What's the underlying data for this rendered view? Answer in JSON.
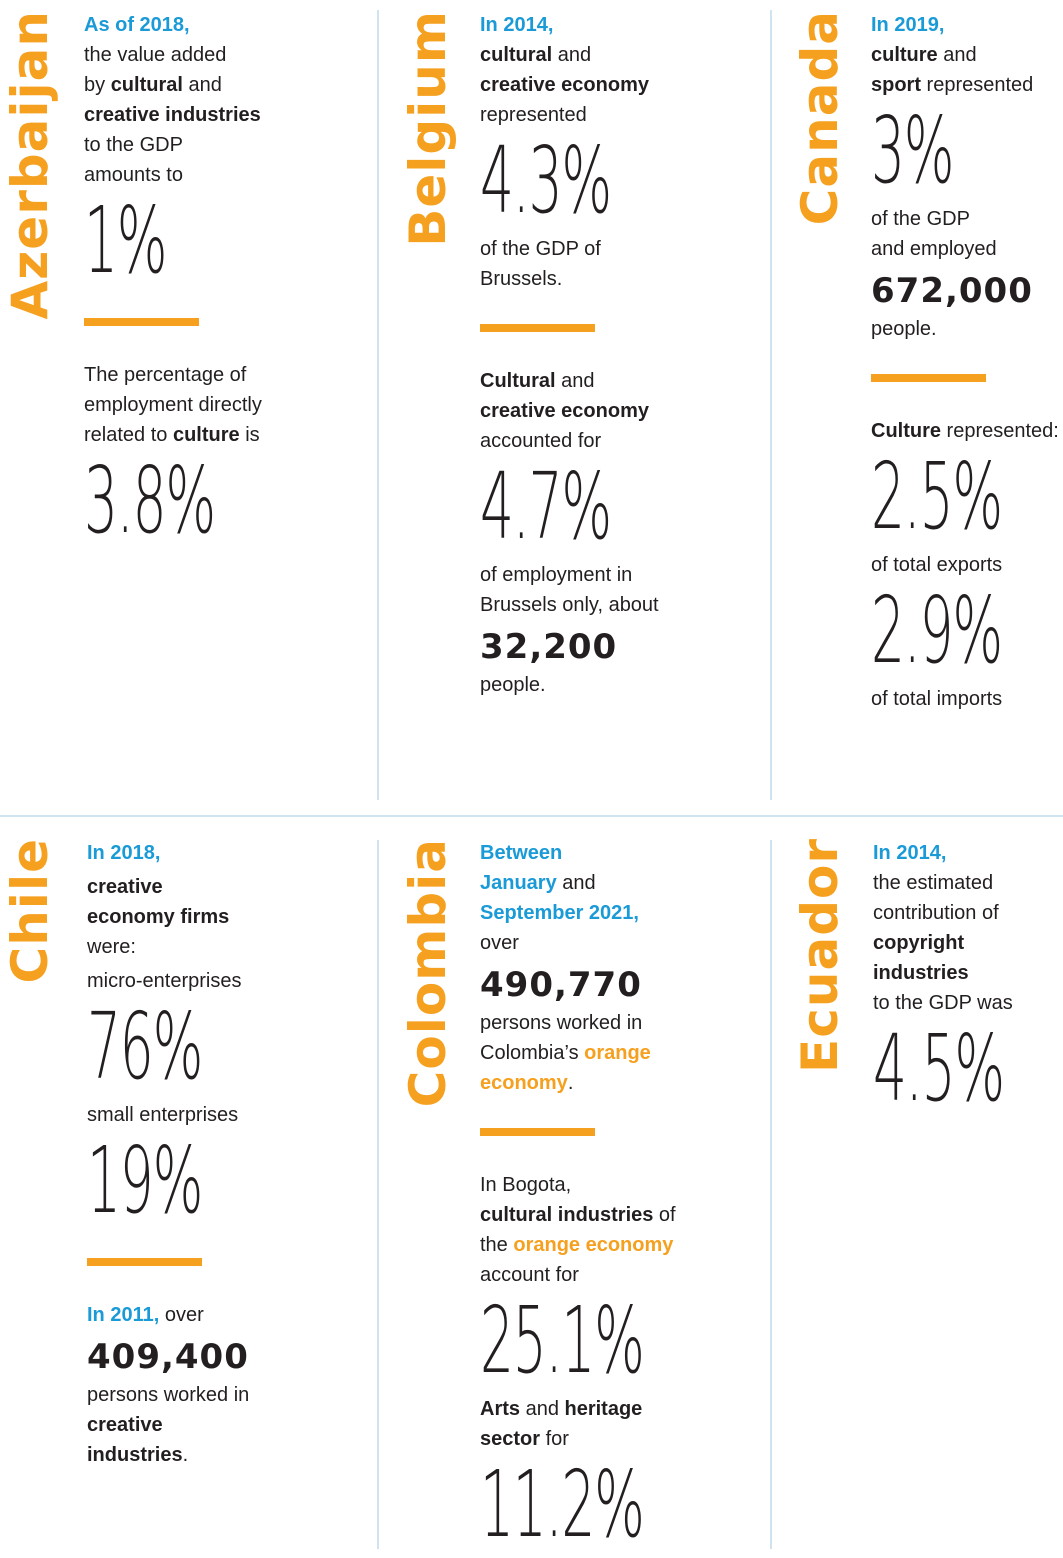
{
  "panels": [
    {
      "country": "Azerbaijan",
      "sections": [
        [
          {
            "kind": "text",
            "lines": [
              [
                {
                  "text": "As of 2018,",
                  "style": "blue"
                }
              ],
              [
                {
                  "text": "the value added"
                }
              ],
              [
                {
                  "text": "by "
                },
                {
                  "text": "cultural",
                  "style": "bold"
                },
                {
                  "text": " and"
                }
              ],
              [
                {
                  "text": "creative industries",
                  "style": "bold"
                }
              ],
              [
                {
                  "text": "to the GDP"
                }
              ],
              [
                {
                  "text": "amounts to"
                }
              ]
            ]
          },
          {
            "kind": "figure",
            "text": "1%"
          }
        ],
        [
          {
            "kind": "text",
            "lines": [
              [
                {
                  "text": "The percentage of"
                }
              ],
              [
                {
                  "text": "employment directly"
                }
              ],
              [
                {
                  "text": "related to "
                },
                {
                  "text": "culture",
                  "style": "bold"
                },
                {
                  "text": " is"
                }
              ]
            ]
          },
          {
            "kind": "figure",
            "text": "3.8%"
          }
        ]
      ]
    },
    {
      "country": "Belgium",
      "sections": [
        [
          {
            "kind": "text",
            "lines": [
              [
                {
                  "text": "In 2014,",
                  "style": "blue"
                }
              ],
              [
                {
                  "text": "cultural",
                  "style": "bold"
                },
                {
                  "text": " and"
                }
              ],
              [
                {
                  "text": "creative economy",
                  "style": "bold"
                }
              ],
              [
                {
                  "text": "represented"
                }
              ]
            ]
          },
          {
            "kind": "figure",
            "text": "4.3%"
          },
          {
            "kind": "text",
            "lines": [
              [
                {
                  "text": "of the GDP of"
                }
              ],
              [
                {
                  "text": "Brussels."
                }
              ]
            ]
          }
        ],
        [
          {
            "kind": "text",
            "lines": [
              [
                {
                  "text": "Cultural",
                  "style": "bold"
                },
                {
                  "text": " and"
                }
              ],
              [
                {
                  "text": "creative economy",
                  "style": "bold"
                }
              ],
              [
                {
                  "text": "accounted for"
                }
              ]
            ]
          },
          {
            "kind": "figure",
            "text": "4.7%"
          },
          {
            "kind": "text",
            "lines": [
              [
                {
                  "text": "of employment in"
                }
              ],
              [
                {
                  "text": "Brussels only, about"
                }
              ]
            ]
          },
          {
            "kind": "count",
            "text": "32,200"
          },
          {
            "kind": "text",
            "lines": [
              [
                {
                  "text": "people."
                }
              ]
            ]
          }
        ]
      ]
    },
    {
      "country": "Canada",
      "sections": [
        [
          {
            "kind": "text",
            "lines": [
              [
                {
                  "text": "In 2019,",
                  "style": "blue"
                }
              ],
              [
                {
                  "text": "culture",
                  "style": "bold"
                },
                {
                  "text": " and"
                }
              ],
              [
                {
                  "text": "sport",
                  "style": "bold"
                },
                {
                  "text": " represented"
                }
              ]
            ]
          },
          {
            "kind": "figure",
            "text": "3%"
          },
          {
            "kind": "text",
            "lines": [
              [
                {
                  "text": "of the GDP"
                }
              ],
              [
                {
                  "text": "and employed"
                }
              ]
            ]
          },
          {
            "kind": "count",
            "text": "672,000"
          },
          {
            "kind": "text",
            "lines": [
              [
                {
                  "text": "people."
                }
              ]
            ]
          }
        ],
        [
          {
            "kind": "text",
            "lines": [
              [
                {
                  "text": "Culture",
                  "style": "bold"
                },
                {
                  "text": " represented:"
                }
              ]
            ]
          },
          {
            "kind": "figure",
            "text": "2.5%"
          },
          {
            "kind": "text",
            "lines": [
              [
                {
                  "text": "of total exports"
                }
              ]
            ]
          },
          {
            "kind": "figure",
            "text": "2.9%"
          },
          {
            "kind": "text",
            "lines": [
              [
                {
                  "text": "of total imports"
                }
              ]
            ]
          }
        ]
      ]
    },
    {
      "country": "Chile",
      "sections": [
        [
          {
            "kind": "text",
            "lines": [
              [
                {
                  "text": "In 2018,",
                  "style": "blue"
                }
              ]
            ]
          },
          {
            "kind": "text",
            "lines": [
              [
                {
                  "text": "creative",
                  "style": "bold"
                }
              ],
              [
                {
                  "text": "economy firms",
                  "style": "bold"
                }
              ],
              [
                {
                  "text": "were:"
                }
              ]
            ]
          },
          {
            "kind": "text",
            "lines": [
              [
                {
                  "text": "micro-enterprises"
                }
              ]
            ]
          },
          {
            "kind": "figure",
            "text": "76%"
          },
          {
            "kind": "text",
            "lines": [
              [
                {
                  "text": "small enterprises"
                }
              ]
            ]
          },
          {
            "kind": "figure",
            "text": "19%"
          }
        ],
        [
          {
            "kind": "text",
            "lines": [
              [
                {
                  "text": "In 2011,",
                  "style": "blue"
                },
                {
                  "text": " over"
                }
              ]
            ]
          },
          {
            "kind": "count",
            "text": "409,400"
          },
          {
            "kind": "text",
            "lines": [
              [
                {
                  "text": "persons worked in"
                }
              ],
              [
                {
                  "text": "creative",
                  "style": "bold"
                }
              ],
              [
                {
                  "text": "industries",
                  "style": "bold"
                },
                {
                  "text": "."
                }
              ]
            ]
          }
        ]
      ]
    },
    {
      "country": "Colombia",
      "sections": [
        [
          {
            "kind": "text",
            "lines": [
              [
                {
                  "text": "Between",
                  "style": "blue"
                }
              ],
              [
                {
                  "text": "January",
                  "style": "blue"
                },
                {
                  "text": " and"
                }
              ],
              [
                {
                  "text": "September 2021,",
                  "style": "blue"
                }
              ],
              [
                {
                  "text": "over"
                }
              ]
            ]
          },
          {
            "kind": "count",
            "text": "490,770"
          },
          {
            "kind": "text",
            "lines": [
              [
                {
                  "text": "persons worked in"
                }
              ],
              [
                {
                  "text": "Colombia’s "
                },
                {
                  "text": "orange",
                  "style": "orange"
                }
              ],
              [
                {
                  "text": "economy",
                  "style": "orange"
                },
                {
                  "text": "."
                }
              ]
            ]
          }
        ],
        [
          {
            "kind": "text",
            "lines": [
              [
                {
                  "text": "In Bogota,"
                }
              ],
              [
                {
                  "text": "cultural industries",
                  "style": "bold"
                },
                {
                  "text": " of"
                }
              ],
              [
                {
                  "text": "the "
                },
                {
                  "text": "orange economy",
                  "style": "orange"
                }
              ],
              [
                {
                  "text": "account for"
                }
              ]
            ]
          },
          {
            "kind": "figure",
            "text": "25.1%"
          },
          {
            "kind": "text",
            "lines": [
              [
                {
                  "text": "Arts",
                  "style": "bold"
                },
                {
                  "text": " and "
                },
                {
                  "text": "heritage",
                  "style": "bold"
                }
              ],
              [
                {
                  "text": "sector",
                  "style": "bold"
                },
                {
                  "text": " for"
                }
              ]
            ]
          },
          {
            "kind": "figure",
            "text": "11.2%"
          }
        ]
      ]
    },
    {
      "country": "Ecuador",
      "sections": [
        [
          {
            "kind": "text",
            "lines": [
              [
                {
                  "text": "In 2014,",
                  "style": "blue"
                }
              ],
              [
                {
                  "text": "the estimated"
                }
              ],
              [
                {
                  "text": "contribution of"
                }
              ],
              [
                {
                  "text": "copyright",
                  "style": "bold"
                }
              ],
              [
                {
                  "text": "industries",
                  "style": "bold"
                }
              ],
              [
                {
                  "text": "to the GDP was"
                }
              ]
            ]
          },
          {
            "kind": "figure",
            "text": "4.5%"
          }
        ]
      ]
    }
  ]
}
